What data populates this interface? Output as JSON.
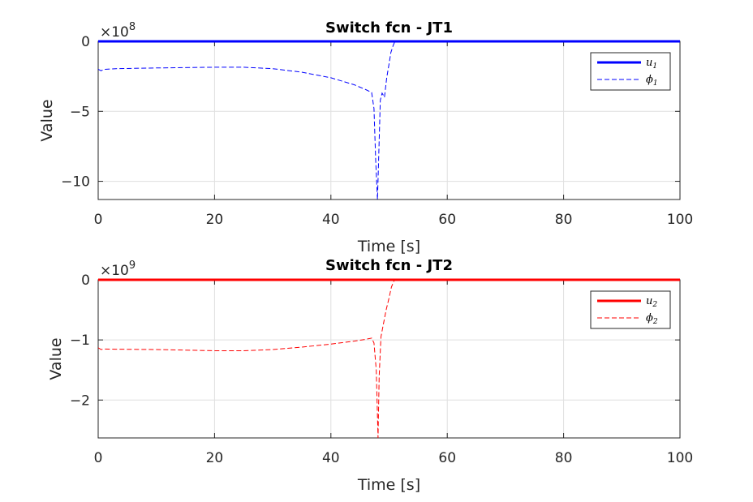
{
  "chart_data": [
    {
      "type": "line",
      "title": "Switch fcn - JT1",
      "xlabel": "Time [s]",
      "ylabel": "Value",
      "xlim": [
        0,
        100
      ],
      "ylim": [
        -11.3,
        0
      ],
      "y_exponent": "×10",
      "y_exponent_power": "8",
      "xticks": [
        0,
        20,
        40,
        60,
        80,
        100
      ],
      "yticks": [
        0,
        -5,
        -10
      ],
      "grid": true,
      "legend_position": "top-right",
      "color": "#0000ff",
      "series": [
        {
          "name": "u",
          "name_sub": "1",
          "style": "solid",
          "x": [
            0,
            100
          ],
          "y": [
            0,
            0
          ]
        },
        {
          "name": "ϕ",
          "name_sub": "1",
          "style": "dashed",
          "x": [
            0,
            0.5,
            1,
            3,
            10,
            20,
            25,
            30,
            35,
            40,
            44,
            46,
            47,
            47.4,
            47.7,
            48.0,
            48.2,
            48.5,
            48.8,
            49.2,
            49.6,
            50.0,
            50.3,
            50.7,
            51,
            100
          ],
          "y": [
            -2.0,
            -2.1,
            -2.0,
            -1.95,
            -1.9,
            -1.85,
            -1.85,
            -1.95,
            -2.2,
            -2.6,
            -3.1,
            -3.45,
            -3.65,
            -4.8,
            -8.5,
            -11.3,
            -8.5,
            -4.2,
            -3.7,
            -4.0,
            -2.6,
            -1.6,
            -0.8,
            -0.3,
            0,
            0
          ]
        }
      ]
    },
    {
      "type": "line",
      "title": "Switch fcn - JT2",
      "xlabel": "Time [s]",
      "ylabel": "Value",
      "xlim": [
        0,
        100
      ],
      "ylim": [
        -2.63,
        0
      ],
      "y_exponent": "×10",
      "y_exponent_power": "9",
      "xticks": [
        0,
        20,
        40,
        60,
        80,
        100
      ],
      "yticks": [
        0,
        -1,
        -2
      ],
      "grid": true,
      "legend_position": "top-right",
      "color": "#ff0000",
      "series": [
        {
          "name": "u",
          "name_sub": "2",
          "style": "solid",
          "x": [
            0,
            100
          ],
          "y": [
            0,
            0
          ]
        },
        {
          "name": "ϕ",
          "name_sub": "2",
          "style": "dashed",
          "x": [
            0,
            0.5,
            1,
            3,
            10,
            20,
            25,
            30,
            35,
            40,
            44,
            46,
            47,
            47.4,
            47.8,
            48.1,
            48.3,
            48.6,
            49.0,
            49.5,
            50.0,
            50.4,
            50.8,
            51,
            100
          ],
          "y": [
            -1.13,
            -1.16,
            -1.15,
            -1.155,
            -1.16,
            -1.18,
            -1.18,
            -1.16,
            -1.12,
            -1.07,
            -1.02,
            -0.99,
            -0.97,
            -1.05,
            -1.5,
            -2.63,
            -1.6,
            -0.95,
            -0.75,
            -0.5,
            -0.3,
            -0.12,
            -0.03,
            0,
            0
          ]
        }
      ]
    }
  ]
}
